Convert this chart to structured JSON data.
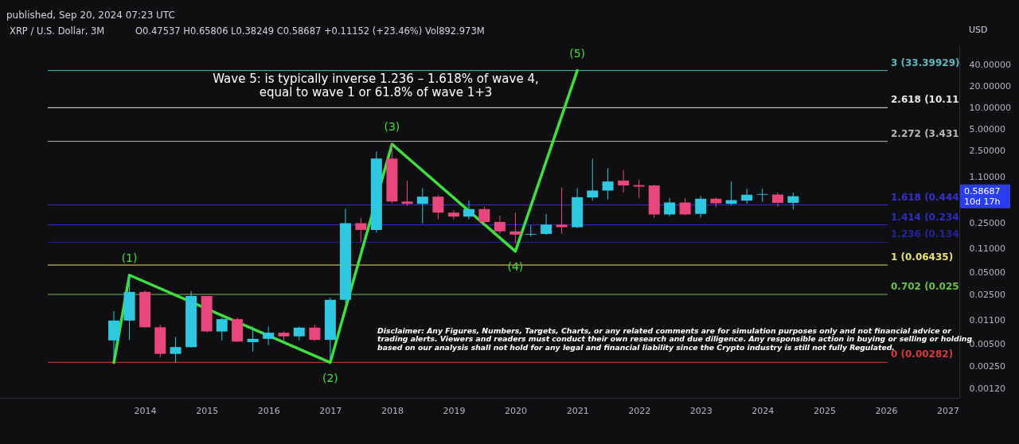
{
  "chart_data": {
    "type": "candlestick",
    "title": "XRP / U.S. Dollar, 3M",
    "subtitle": "O0.47537 H0.65806 L0.38249 C0.58687 +0.11152 (+23.46%) Vol892.973M",
    "ylabel": "USD",
    "x": [
      "2013-07",
      "2013-10",
      "2014-01",
      "2014-04",
      "2014-07",
      "2014-10",
      "2015-01",
      "2015-04",
      "2015-07",
      "2015-10",
      "2016-01",
      "2016-04",
      "2016-07",
      "2016-10",
      "2017-01",
      "2017-04",
      "2017-07",
      "2017-10",
      "2018-01",
      "2018-04",
      "2018-07",
      "2018-10",
      "2019-01",
      "2019-04",
      "2019-07",
      "2019-10",
      "2020-01",
      "2020-04",
      "2020-07",
      "2020-10",
      "2021-01",
      "2021-04",
      "2021-07",
      "2021-10",
      "2022-01",
      "2022-04",
      "2022-07",
      "2022-10",
      "2023-01",
      "2023-04",
      "2023-07",
      "2023-10",
      "2024-01",
      "2024-04",
      "2024-07"
    ],
    "ohlc": [
      [
        0.0057,
        0.0146,
        0.0032,
        0.0108
      ],
      [
        0.0108,
        0.0465,
        0.0058,
        0.0271
      ],
      [
        0.0271,
        0.0284,
        0.0085,
        0.0087
      ],
      [
        0.0087,
        0.0094,
        0.0033,
        0.0037
      ],
      [
        0.0037,
        0.0064,
        0.0028,
        0.0046
      ],
      [
        0.0046,
        0.0278,
        0.0045,
        0.0238
      ],
      [
        0.0238,
        0.0238,
        0.0074,
        0.0076
      ],
      [
        0.0076,
        0.0119,
        0.0057,
        0.0113
      ],
      [
        0.0113,
        0.0119,
        0.0054,
        0.0055
      ],
      [
        0.0054,
        0.0089,
        0.004,
        0.006
      ],
      [
        0.006,
        0.0089,
        0.0049,
        0.0073
      ],
      [
        0.0073,
        0.0076,
        0.0057,
        0.0065
      ],
      [
        0.0065,
        0.0089,
        0.0057,
        0.0086
      ],
      [
        0.0086,
        0.0095,
        0.0056,
        0.0058
      ],
      [
        0.0058,
        0.0225,
        0.0031,
        0.021
      ],
      [
        0.021,
        0.394,
        0.019,
        0.247
      ],
      [
        0.247,
        0.292,
        0.135,
        0.199
      ],
      [
        0.199,
        2.48,
        0.182,
        1.97
      ],
      [
        1.97,
        3.13,
        0.468,
        0.496
      ],
      [
        0.496,
        0.968,
        0.43,
        0.459
      ],
      [
        0.459,
        0.762,
        0.246,
        0.579
      ],
      [
        0.579,
        0.605,
        0.28,
        0.347
      ],
      [
        0.347,
        0.378,
        0.28,
        0.305
      ],
      [
        0.305,
        0.509,
        0.28,
        0.388
      ],
      [
        0.388,
        0.42,
        0.24,
        0.257
      ],
      [
        0.257,
        0.313,
        0.175,
        0.19
      ],
      [
        0.19,
        0.347,
        0.13,
        0.171
      ],
      [
        0.171,
        0.23,
        0.16,
        0.175
      ],
      [
        0.175,
        0.332,
        0.17,
        0.236
      ],
      [
        0.236,
        0.78,
        0.175,
        0.217
      ],
      [
        0.217,
        0.76,
        0.21,
        0.57
      ],
      [
        0.564,
        1.97,
        0.509,
        0.705
      ],
      [
        0.705,
        1.45,
        0.53,
        0.943
      ],
      [
        0.97,
        1.36,
        0.658,
        0.83
      ],
      [
        0.84,
        1.0,
        0.556,
        0.8
      ],
      [
        0.83,
        0.85,
        0.292,
        0.327
      ],
      [
        0.327,
        0.556,
        0.305,
        0.48
      ],
      [
        0.48,
        0.556,
        0.318,
        0.327
      ],
      [
        0.333,
        0.59,
        0.297,
        0.542
      ],
      [
        0.542,
        0.57,
        0.41,
        0.468
      ],
      [
        0.46,
        0.95,
        0.44,
        0.518
      ],
      [
        0.51,
        0.748,
        0.46,
        0.616
      ],
      [
        0.616,
        0.75,
        0.49,
        0.63
      ],
      [
        0.62,
        0.66,
        0.42,
        0.475
      ],
      [
        0.47537,
        0.65806,
        0.38249,
        0.58687
      ]
    ],
    "colors": [
      "#2ec8e0",
      "#2ec8e0",
      "#e8467c",
      "#e8467c",
      "#2ec8e0",
      "#2ec8e0",
      "#e8467c",
      "#2ec8e0",
      "#e8467c",
      "#2ec8e0",
      "#2ec8e0",
      "#e8467c",
      "#2ec8e0",
      "#e8467c",
      "#2ec8e0",
      "#2ec8e0",
      "#e8467c",
      "#2ec8e0",
      "#e8467c",
      "#e8467c",
      "#2ec8e0",
      "#e8467c",
      "#e8467c",
      "#2ec8e0",
      "#e8467c",
      "#e8467c",
      "#e8467c",
      "#2ec8e0",
      "#2ec8e0",
      "#e8467c",
      "#2ec8e0",
      "#2ec8e0",
      "#2ec8e0",
      "#e8467c",
      "#e8467c",
      "#e8467c",
      "#2ec8e0",
      "#e8467c",
      "#2ec8e0",
      "#e8467c",
      "#2ec8e0",
      "#2ec8e0",
      "#2ec8e0",
      "#e8467c",
      "#2ec8e0"
    ],
    "series": [
      {
        "type": "line",
        "color": "#3ee03e",
        "x": [
          "2013-07",
          "2013-10",
          "2017-01",
          "2018-01",
          "2020-01",
          "2021-01"
        ],
        "values": [
          0.0028,
          0.0465,
          0.0028,
          3.13,
          0.1,
          33.4
        ]
      }
    ],
    "log": "y",
    "ylim": [
      0.0009,
      75
    ],
    "yticks": [
      {
        "value": 0.0012,
        "label": "0.00120"
      },
      {
        "value": 0.0025,
        "label": "0.00250"
      },
      {
        "value": 0.005,
        "label": "0.00500"
      },
      {
        "value": 0.011,
        "label": "0.01100"
      },
      {
        "value": 0.025,
        "label": "0.02500"
      },
      {
        "value": 0.05,
        "label": "0.05000"
      },
      {
        "value": 0.11,
        "label": "0.11000"
      },
      {
        "value": 0.25,
        "label": "0.25000"
      },
      {
        "value": 1.1,
        "label": "1.10000"
      },
      {
        "value": 2.5,
        "label": "2.50000"
      },
      {
        "value": 5,
        "label": "5.00000"
      },
      {
        "value": 10,
        "label": "10.00000"
      },
      {
        "value": 20,
        "label": "20.00000"
      },
      {
        "value": 40,
        "label": "40.00000"
      }
    ],
    "xlim": [
      "2011-09-20",
      "2027-02-15"
    ],
    "xticks": [
      "2014",
      "2015",
      "2016",
      "2017",
      "2018",
      "2019",
      "2020",
      "2021",
      "2022",
      "2023",
      "2024",
      "2025",
      "2026",
      "2027"
    ],
    "ref_lines": [
      {
        "axis": "y",
        "value": 33.39929,
        "label": "3 (33.39929)",
        "color": "#5fb8c0"
      },
      {
        "axis": "y",
        "value": 10.11,
        "label": "2.618 (10.11",
        "color": "#e8e8e8"
      },
      {
        "axis": "y",
        "value": 3.431,
        "label": "2.272 (3.431",
        "color": "#b8b8b8"
      },
      {
        "axis": "y",
        "value": 0.444,
        "label": "1.618 (0.444",
        "color": "#3a2fd0"
      },
      {
        "axis": "y",
        "value": 0.234,
        "label": "1.414 (0.234",
        "color": "#2c2cc8"
      },
      {
        "axis": "y",
        "value": 0.134,
        "label": "1.236 (0.134",
        "color": "#23239e"
      },
      {
        "axis": "y",
        "value": 0.06435,
        "label": "1 (0.06435)",
        "color": "#e8e070"
      },
      {
        "axis": "y",
        "value": 0.025,
        "label": "0.702 (0.025",
        "color": "#6cc04a"
      },
      {
        "axis": "y",
        "value": 0.00282,
        "label": "0 (0.00282)",
        "color": "#d83a3a"
      }
    ],
    "annotations": [
      "published, Sep 20, 2024 07:23 UTC",
      "Wave 5: is typically inverse 1.236 – 1.618% of wave 4,\nequal to wave 1 or 61.8% of wave 1+3",
      "Disclaimer: Any Figures, Numbers, Targets, Charts, or any related comments are for simulation purposes only and not financial advice or\ntrading alerts. Viewers and readers must conduct their own research and due diligence. Any responsible action in buying or selling or holding\nbased on our analysis shall not hold for any legal and financial liability since the Crypto industry is still not fully Regulated.",
      {
        "text": "(1)",
        "x": "2013-10",
        "y": 0.0465
      },
      {
        "text": "(2)",
        "x": "2017-01",
        "y": 0.0028
      },
      {
        "text": "(3)",
        "x": "2018-01",
        "y": 3.13
      },
      {
        "text": "(4)",
        "x": "2020-01",
        "y": 0.1
      },
      {
        "text": "(5)",
        "x": "2021-01",
        "y": 33.4
      },
      "0.58687\n10d 17h"
    ],
    "grid": false,
    "marker": "none",
    "line_style": "solid"
  }
}
